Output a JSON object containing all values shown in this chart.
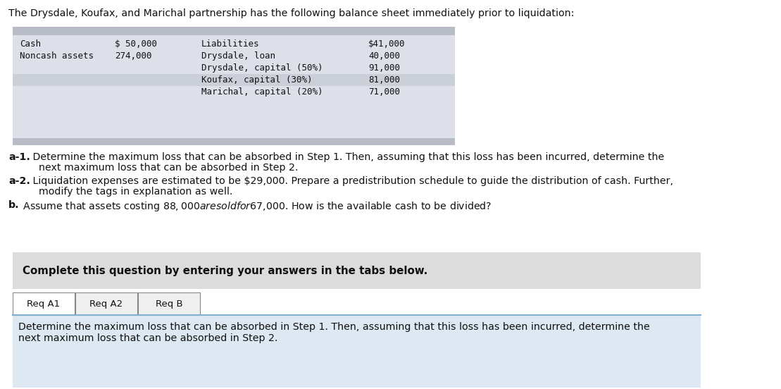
{
  "title": "The Drysdale, Koufax, and Marichal partnership has the following balance sheet immediately prior to liquidation:",
  "balance_sheet": {
    "left_labels": [
      "Cash",
      "Noncash assets"
    ],
    "left_values": [
      "$ 50,000",
      "274,000"
    ],
    "right_labels": [
      "Liabilities",
      "Drysdale, loan",
      "Drysdale, capital (50%)",
      "Koufax, capital (30%)",
      "Marichal, capital (20%)"
    ],
    "right_values": [
      "$41,000",
      "40,000",
      "91,000",
      "81,000",
      "71,000"
    ]
  },
  "q_a1_bold": "a-1.",
  "q_a1_line1": " Determine the maximum loss that can be absorbed in Step 1. Then, assuming that this loss has been incurred, determine the",
  "q_a1_line2": "next maximum loss that can be absorbed in Step 2.",
  "q_a2_bold": "a-2.",
  "q_a2_line1": " Liquidation expenses are estimated to be $29,000. Prepare a predistribution schedule to guide the distribution of cash. Further,",
  "q_a2_line2": "modify the tags in explanation as well.",
  "q_b_bold": "b.",
  "q_b_line1": " Assume that assets costing $88,000 are sold for $67,000. How is the available cash to be divided?",
  "complete_text": "Complete this question by entering your answers in the tabs below.",
  "tabs": [
    "Req A1",
    "Req A2",
    "Req B"
  ],
  "active_tab": 0,
  "bottom_line1": "Determine the maximum loss that can be absorbed in Step 1. Then, assuming that this loss has been incurred, determine the",
  "bottom_line2": "next maximum loss that can be absorbed in Step 2.",
  "bg_color": "#ffffff",
  "table_bg": "#dde0e8",
  "table_stripe": "#cbcfd8",
  "gray_bar_color": "#b8bcc6",
  "complete_box_bg": "#dcdcdc",
  "bottom_box_bg": "#dde8f2",
  "tab_active_bg": "#ffffff",
  "tab_inactive_bg": "#efefef",
  "monospace_font": "monospace",
  "normal_font": "DejaVu Sans"
}
